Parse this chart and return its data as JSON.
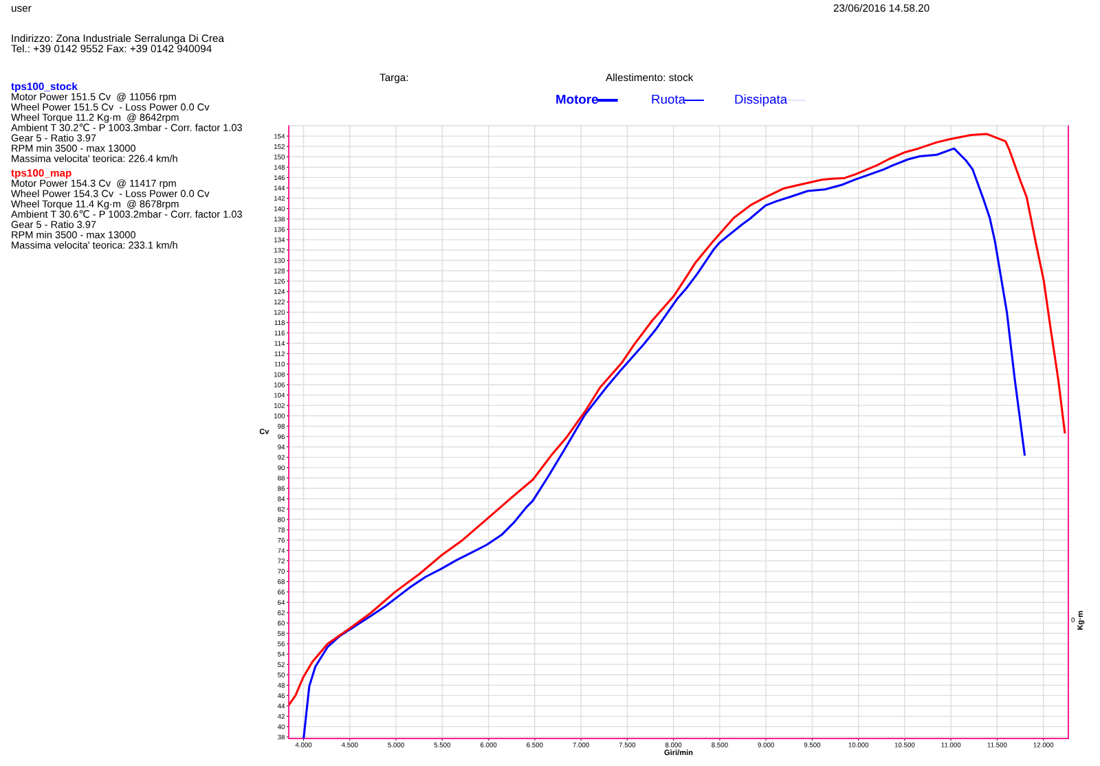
{
  "chart_data": {
    "type": "line",
    "xlabel": "Giri/min",
    "ylabel": "Cv",
    "y2label": "Kg·m",
    "xlim": [
      3.84,
      12.27
    ],
    "ylim": [
      37.7,
      156
    ],
    "xticks": [
      {
        "value": 4,
        "label": "4.000"
      },
      {
        "value": 4.5,
        "label": "4.500"
      },
      {
        "value": 5,
        "label": "5.000"
      },
      {
        "value": 5.5,
        "label": "5.500"
      },
      {
        "value": 6,
        "label": "6.000"
      },
      {
        "value": 6.5,
        "label": "6.500"
      },
      {
        "value": 7,
        "label": "7.000"
      },
      {
        "value": 7.5,
        "label": "7.500"
      },
      {
        "value": 8,
        "label": "8.000"
      },
      {
        "value": 8.5,
        "label": "8.500"
      },
      {
        "value": 9,
        "label": "9.000"
      },
      {
        "value": 9.5,
        "label": "9.500"
      },
      {
        "value": 10,
        "label": "10.000"
      },
      {
        "value": 10.5,
        "label": "10.500"
      },
      {
        "value": 11,
        "label": "11.000"
      },
      {
        "value": 11.5,
        "label": "11.500"
      },
      {
        "value": 12,
        "label": "12.000"
      }
    ],
    "yticks": [
      38,
      40,
      42,
      44,
      46,
      48,
      50,
      52,
      54,
      56,
      58,
      60,
      62,
      64,
      66,
      68,
      70,
      72,
      74,
      76,
      78,
      80,
      82,
      84,
      86,
      88,
      90,
      92,
      94,
      96,
      98,
      100,
      102,
      104,
      106,
      108,
      110,
      112,
      114,
      116,
      118,
      120,
      122,
      124,
      126,
      128,
      130,
      132,
      134,
      136,
      138,
      140,
      142,
      144,
      146,
      148,
      150,
      152,
      154
    ],
    "grid": true,
    "line_style": "solid",
    "marker": "none",
    "series": [
      {
        "name": "tps100_stock",
        "color": "#0000ff",
        "x": [
          4.002,
          4.062,
          4.128,
          4.261,
          4.393,
          4.591,
          4.723,
          4.889,
          5.021,
          5.153,
          5.319,
          5.484,
          5.65,
          5.816,
          5.981,
          6.147,
          6.28,
          6.412,
          6.479,
          6.646,
          6.845,
          7.042,
          7.275,
          7.44,
          7.673,
          7.806,
          8.037,
          8.139,
          8.253,
          8.439,
          8.496,
          8.739,
          8.824,
          8.995,
          9.109,
          9.252,
          9.451,
          9.637,
          9.822,
          9.964,
          10.107,
          10.278,
          10.364,
          10.535,
          10.663,
          10.848,
          11.034,
          11.162,
          11.234,
          11.348,
          11.42,
          11.477,
          11.605,
          11.69,
          11.797
        ],
        "values": [
          37.9,
          47.8,
          51.6,
          55.4,
          57.5,
          59.8,
          61.3,
          63.3,
          65.1,
          66.9,
          68.9,
          70.4,
          72.1,
          73.6,
          75.1,
          77.1,
          79.5,
          82.4,
          83.6,
          88.3,
          94.2,
          100.2,
          105.5,
          109.0,
          113.7,
          116.6,
          122.5,
          124.6,
          127.3,
          132.2,
          133.4,
          136.9,
          138.0,
          140.6,
          141.4,
          142.2,
          143.4,
          143.7,
          144.6,
          145.6,
          146.5,
          147.6,
          148.3,
          149.5,
          150.1,
          150.4,
          151.6,
          149.3,
          147.6,
          142.0,
          138.2,
          133.6,
          120.0,
          107.1,
          92.5
        ]
      },
      {
        "name": "tps100_map",
        "color": "#ff0000",
        "x": [
          3.846,
          3.913,
          3.996,
          4.095,
          4.261,
          4.493,
          4.724,
          4.99,
          5.255,
          5.487,
          5.719,
          5.984,
          6.249,
          6.481,
          6.68,
          6.846,
          7.042,
          7.208,
          7.44,
          7.573,
          7.771,
          8.003,
          8.139,
          8.235,
          8.424,
          8.651,
          8.837,
          8.994,
          9.194,
          9.336,
          9.608,
          9.736,
          9.85,
          9.964,
          10.192,
          10.335,
          10.506,
          10.649,
          10.848,
          10.991,
          11.219,
          11.39,
          11.59,
          11.633,
          11.747,
          11.819,
          11.918,
          12.004,
          12.075,
          12.16,
          12.231
        ],
        "values": [
          44.3,
          46.0,
          49.5,
          52.5,
          56.0,
          58.9,
          61.9,
          66.0,
          69.5,
          73.0,
          76.0,
          80.1,
          84.2,
          87.7,
          92.4,
          95.9,
          100.8,
          105.5,
          110.2,
          113.7,
          118.4,
          123.1,
          126.8,
          129.5,
          133.6,
          138.2,
          140.7,
          142.2,
          143.9,
          144.5,
          145.6,
          145.8,
          145.9,
          146.6,
          148.3,
          149.6,
          150.9,
          151.6,
          152.8,
          153.4,
          154.2,
          154.4,
          153.0,
          151.3,
          145.6,
          142.2,
          133.4,
          126.1,
          117.2,
          107.1,
          96.8
        ]
      }
    ],
    "annotations": [
      "user",
      "23/06/2016 14.58.20",
      "Indirizzo: Zona Industriale Serralunga Di Crea",
      "Tel.: +39 0142 9552 Fax: +39 0142 940094",
      "Targa:",
      "Allestimento: stock",
      "Motore",
      "Ruota",
      "Dissipata",
      "Motor Power 151.5 Cv  @ 11056 rpm",
      "Wheel Power 151.5 Cv  - Loss Power 0.0 Cv",
      "Wheel Torque 11.2 Kg·m  @ 8642rpm",
      "Ambient T 30.2℃ - P 1003.3mbar - Corr. factor 1.03",
      "Gear 5 - Ratio 3.97",
      "RPM min 3500 - max 13000",
      "Massima velocita' teorica: 226.4 km/h",
      "Motor Power 154.3 Cv  @ 11417 rpm",
      "Wheel Power 154.3 Cv  - Loss Power 0.0 Cv",
      "Wheel Torque 11.4 Kg·m  @ 8678rpm",
      "Ambient T 30.6℃ - P 1003.2mbar - Corr. factor 1.03",
      "Gear 5 - Ratio 3.97",
      "RPM min 3500 - max 13000",
      "Massima velocita' teorica: 233.1 km/h",
      "0"
    ]
  }
}
